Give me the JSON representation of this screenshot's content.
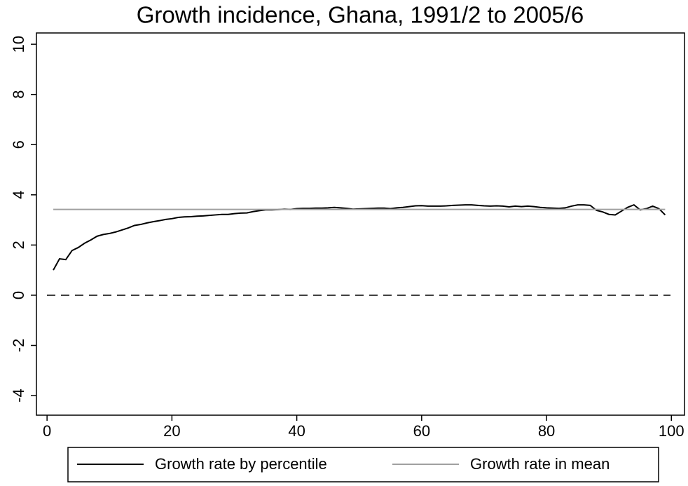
{
  "chart_data": {
    "type": "line",
    "title": "Growth incidence, Ghana, 1991/2 to 2005/6",
    "x": [
      1,
      2,
      3,
      4,
      5,
      6,
      7,
      8,
      9,
      10,
      11,
      12,
      13,
      14,
      15,
      16,
      17,
      18,
      19,
      20,
      21,
      22,
      23,
      24,
      25,
      26,
      27,
      28,
      29,
      30,
      31,
      32,
      33,
      34,
      35,
      36,
      37,
      38,
      39,
      40,
      41,
      42,
      43,
      44,
      45,
      46,
      47,
      48,
      49,
      50,
      51,
      52,
      53,
      54,
      55,
      56,
      57,
      58,
      59,
      60,
      61,
      62,
      63,
      64,
      65,
      66,
      67,
      68,
      69,
      70,
      71,
      72,
      73,
      74,
      75,
      76,
      77,
      78,
      79,
      80,
      81,
      82,
      83,
      84,
      85,
      86,
      87,
      88,
      89,
      90,
      91,
      92,
      93,
      94,
      95,
      96,
      97,
      98,
      99
    ],
    "series": [
      {
        "name": "Growth rate by percentile",
        "color": "#000000",
        "values": [
          1.0,
          1.45,
          1.42,
          1.78,
          1.9,
          2.07,
          2.2,
          2.35,
          2.42,
          2.46,
          2.52,
          2.6,
          2.68,
          2.78,
          2.82,
          2.88,
          2.93,
          2.97,
          3.02,
          3.05,
          3.1,
          3.12,
          3.13,
          3.15,
          3.16,
          3.18,
          3.2,
          3.22,
          3.22,
          3.25,
          3.27,
          3.28,
          3.33,
          3.37,
          3.4,
          3.4,
          3.41,
          3.43,
          3.42,
          3.45,
          3.46,
          3.46,
          3.47,
          3.47,
          3.48,
          3.5,
          3.48,
          3.46,
          3.43,
          3.44,
          3.45,
          3.46,
          3.47,
          3.47,
          3.45,
          3.48,
          3.5,
          3.53,
          3.56,
          3.57,
          3.55,
          3.55,
          3.55,
          3.56,
          3.58,
          3.59,
          3.6,
          3.6,
          3.58,
          3.56,
          3.55,
          3.56,
          3.55,
          3.52,
          3.55,
          3.53,
          3.55,
          3.53,
          3.5,
          3.48,
          3.47,
          3.46,
          3.48,
          3.55,
          3.6,
          3.6,
          3.58,
          3.38,
          3.32,
          3.22,
          3.2,
          3.35,
          3.5,
          3.6,
          3.4,
          3.45,
          3.55,
          3.45,
          3.2
        ]
      },
      {
        "name": "Growth rate in mean",
        "color": "#a0a0a0",
        "value": 3.42
      }
    ],
    "xlim": [
      -1.7,
      102.1
    ],
    "ylim": [
      -4.78,
      10.45
    ],
    "xticks": [
      0,
      20,
      40,
      60,
      80,
      100
    ],
    "yticks": [
      -4,
      -2,
      0,
      2,
      4,
      6,
      8,
      10
    ],
    "zero_line": true
  }
}
